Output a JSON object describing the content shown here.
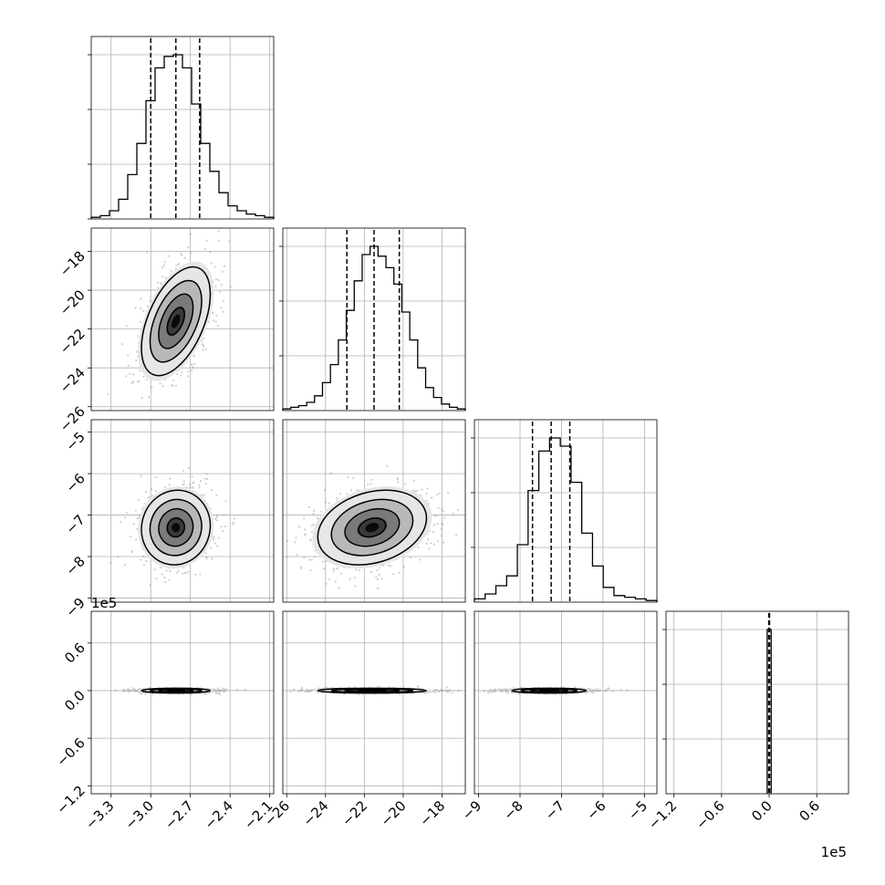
{
  "chart_data": {
    "type": "corner",
    "description_free": true,
    "grid": true,
    "params": [
      {
        "range": [
          -3.45,
          -2.07
        ],
        "ticks": [
          -3.3,
          -3.0,
          -2.7,
          -2.4,
          -2.1
        ],
        "tick_labels": [
          "−3.3",
          "−3.0",
          "−2.7",
          "−2.4",
          "−2.1"
        ],
        "quantiles": [
          -3.0,
          -2.81,
          -2.63
        ],
        "hist_edges_range": [
          -3.45,
          -2.07
        ],
        "hist": [
          0.01,
          0.02,
          0.05,
          0.12,
          0.27,
          0.46,
          0.72,
          0.92,
          0.99,
          1.0,
          0.92,
          0.7,
          0.46,
          0.29,
          0.16,
          0.08,
          0.05,
          0.03,
          0.02,
          0.01
        ]
      },
      {
        "range": [
          -26.2,
          -16.8
        ],
        "ticks": [
          -26,
          -24,
          -22,
          -20,
          -18
        ],
        "tick_labels": [
          "−26",
          "−24",
          "−22",
          "−20",
          "−18"
        ],
        "quantiles": [
          -22.9,
          -21.5,
          -20.2
        ],
        "hist": [
          0.01,
          0.02,
          0.03,
          0.05,
          0.09,
          0.17,
          0.28,
          0.43,
          0.61,
          0.79,
          0.95,
          1.0,
          0.94,
          0.87,
          0.77,
          0.6,
          0.43,
          0.26,
          0.14,
          0.08,
          0.04,
          0.02,
          0.01
        ]
      },
      {
        "range": [
          -9.1,
          -4.7
        ],
        "ticks": [
          -9,
          -8,
          -7,
          -6,
          -5
        ],
        "tick_labels": [
          "−9",
          "−8",
          "−7",
          "−6",
          "−5"
        ],
        "quantiles": [
          -7.7,
          -7.25,
          -6.8
        ],
        "hist": [
          0.02,
          0.05,
          0.1,
          0.16,
          0.35,
          0.68,
          0.92,
          1.0,
          0.95,
          0.73,
          0.42,
          0.22,
          0.09,
          0.04,
          0.03,
          0.02,
          0.01
        ]
      },
      {
        "range": [
          -130000,
          100000
        ],
        "ticks": [
          -120000,
          -60000,
          0,
          60000
        ],
        "tick_labels": [
          "−1.2",
          "−0.6",
          "0.0",
          "0.6"
        ],
        "exponent_label": "1e5",
        "quantiles": [
          -500,
          0,
          500
        ],
        "hist_bar": [
          -2500,
          2500
        ]
      }
    ],
    "pairs": [
      {
        "row": 1,
        "col": 0,
        "center": [
          -2.81,
          -21.6
        ],
        "sd": [
          0.13,
          1.4
        ],
        "corr": 0.5
      },
      {
        "row": 2,
        "col": 0,
        "center": [
          -2.81,
          -7.3
        ],
        "sd": [
          0.13,
          0.45
        ],
        "corr": 0.05
      },
      {
        "row": 2,
        "col": 1,
        "center": [
          -21.6,
          -7.3
        ],
        "sd": [
          1.4,
          0.45
        ],
        "corr": 0.25
      },
      {
        "row": 3,
        "col": 0,
        "center": [
          -2.81,
          0
        ],
        "sd": [
          0.13,
          1500
        ],
        "corr": 0
      },
      {
        "row": 3,
        "col": 1,
        "center": [
          -21.6,
          0
        ],
        "sd": [
          1.4,
          1500
        ],
        "corr": 0
      },
      {
        "row": 3,
        "col": 2,
        "center": [
          -7.3,
          0
        ],
        "sd": [
          0.45,
          1500
        ],
        "corr": 0
      }
    ],
    "contour_levels_sigma": [
      0.5,
      1.0,
      1.5,
      2.0
    ]
  }
}
